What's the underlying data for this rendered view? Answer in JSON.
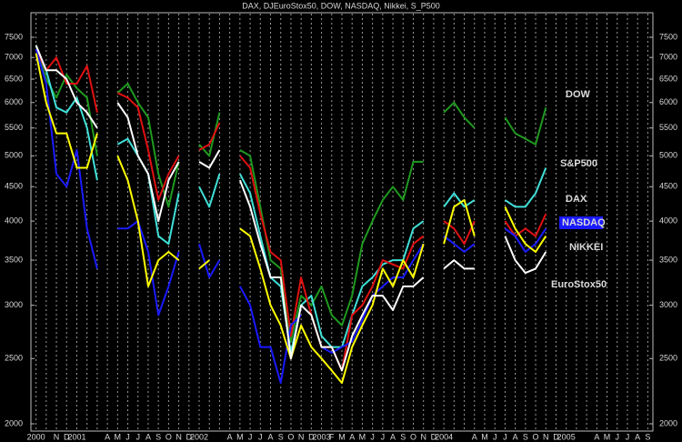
{
  "chart_data": {
    "type": "line",
    "title": "DAX, DJEuroStox50, DOW, NASDAQ, Nikkei, S_P500",
    "categories": [
      "2000",
      null,
      "N",
      "D",
      "2001",
      null,
      null,
      "A",
      "M",
      "J",
      "J",
      "A",
      "S",
      "O",
      "N",
      "D",
      "2002",
      null,
      null,
      "A",
      "M",
      "J",
      "J",
      "A",
      "S",
      "O",
      "N",
      "D",
      "2003",
      "F",
      "M",
      "A",
      "M",
      "J",
      "J",
      "A",
      "S",
      "O",
      "N",
      "D",
      "2004",
      null,
      null,
      "A",
      "M",
      "J",
      "J",
      "A",
      "S",
      "O",
      "N",
      "D",
      "2005",
      null,
      null,
      "A",
      "M",
      "J",
      "J",
      "A",
      "S"
    ],
    "ylim": [
      2000,
      7500
    ],
    "yticks": [
      2000,
      2500,
      3000,
      3500,
      4000,
      4500,
      5000,
      5500,
      6000,
      6500,
      7000,
      7500
    ],
    "log_y": true,
    "grid": "x",
    "series": [
      {
        "name": "DOW",
        "color": "#1f9a1f",
        "values": [
          7300,
          6500,
          6100,
          6600,
          6300,
          6100,
          5000,
          null,
          6200,
          6400,
          6000,
          5700,
          4700,
          4200,
          4900,
          null,
          5200,
          5000,
          5800,
          null,
          5100,
          5000,
          4200,
          3500,
          3400,
          2650,
          3100,
          3000,
          3200,
          2900,
          2800,
          3100,
          3700,
          4000,
          4300,
          4500,
          4300,
          4900,
          4900,
          null,
          5800,
          6000,
          5700,
          5500,
          null,
          null,
          5700,
          5400,
          5300,
          5200,
          5900,
          null,
          null,
          null,
          null,
          null,
          null,
          null,
          null,
          null,
          null
        ]
      },
      {
        "name": "S&P500",
        "color": "#40e0d8",
        "values": [
          7200,
          6700,
          5900,
          5800,
          6100,
          5500,
          4600,
          null,
          5200,
          5300,
          5000,
          4700,
          3800,
          3700,
          4400,
          null,
          4500,
          4200,
          4700,
          null,
          4700,
          4400,
          3800,
          3300,
          3200,
          2550,
          3000,
          3100,
          2700,
          2600,
          2600,
          2900,
          3200,
          3300,
          3450,
          3500,
          3500,
          3900,
          4000,
          null,
          4200,
          4400,
          4200,
          4300,
          null,
          null,
          4300,
          4200,
          4200,
          4400,
          4800,
          null,
          null,
          null,
          null,
          null,
          null,
          null,
          null,
          null,
          null
        ]
      },
      {
        "name": "DAX",
        "color": "#e01010",
        "values": [
          7200,
          6700,
          7000,
          6400,
          6400,
          6800,
          5800,
          null,
          6200,
          6100,
          5900,
          5100,
          4300,
          4700,
          5000,
          null,
          5100,
          5200,
          5600,
          null,
          5000,
          4800,
          4100,
          3600,
          3500,
          2700,
          3300,
          2900,
          2600,
          2600,
          2400,
          2900,
          3000,
          3200,
          3500,
          3450,
          3400,
          3700,
          3800,
          null,
          4000,
          3900,
          3700,
          4000,
          null,
          null,
          4000,
          3800,
          3900,
          3800,
          4100,
          null,
          null,
          null,
          null,
          null,
          null,
          null,
          null,
          null,
          null
        ]
      },
      {
        "name": "NASDAQ",
        "color": "#1a1aff",
        "values": [
          7200,
          6400,
          4700,
          4500,
          5100,
          3900,
          3400,
          null,
          3900,
          3900,
          4000,
          3600,
          2900,
          3200,
          3600,
          null,
          3700,
          3300,
          3500,
          null,
          3200,
          3000,
          2600,
          2600,
          2300,
          2800,
          2900,
          null,
          2600,
          2550,
          2600,
          2650,
          2850,
          3100,
          3200,
          3300,
          3300,
          3500,
          3700,
          null,
          3800,
          3700,
          3600,
          3700,
          null,
          null,
          3900,
          3800,
          3600,
          3700,
          3900,
          null,
          null,
          null,
          null,
          null,
          null,
          null,
          null,
          null,
          null
        ]
      },
      {
        "name": "NIKKEI",
        "color": "#ffff00",
        "values": [
          7100,
          6000,
          5400,
          5400,
          4800,
          4800,
          5400,
          null,
          5000,
          4600,
          4000,
          3200,
          3500,
          3600,
          3500,
          null,
          3400,
          3500,
          null,
          null,
          3900,
          3800,
          3400,
          3000,
          2800,
          2500,
          2800,
          2600,
          2500,
          2400,
          2300,
          2600,
          2800,
          3000,
          3400,
          3200,
          3500,
          3300,
          3700,
          null,
          3700,
          4200,
          4300,
          3800,
          null,
          null,
          4200,
          3900,
          3700,
          3600,
          3800,
          null,
          null,
          null,
          null,
          null,
          null,
          null,
          null,
          null,
          null
        ]
      },
      {
        "name": "EuroStox50",
        "color": "#ffffff",
        "values": [
          7300,
          6700,
          6700,
          6500,
          6000,
          5800,
          5500,
          null,
          6000,
          5700,
          5000,
          4700,
          4000,
          4600,
          4900,
          null,
          4900,
          4800,
          5100,
          null,
          4600,
          4200,
          3700,
          3300,
          3300,
          2500,
          3000,
          2900,
          2600,
          2600,
          2400,
          2700,
          2900,
          3100,
          3100,
          2950,
          3200,
          3200,
          3300,
          null,
          3400,
          3500,
          3400,
          3400,
          null,
          null,
          3800,
          3500,
          3350,
          3400,
          3600,
          null,
          null,
          null,
          null,
          null,
          null,
          null,
          null,
          null,
          null
        ]
      }
    ]
  }
}
